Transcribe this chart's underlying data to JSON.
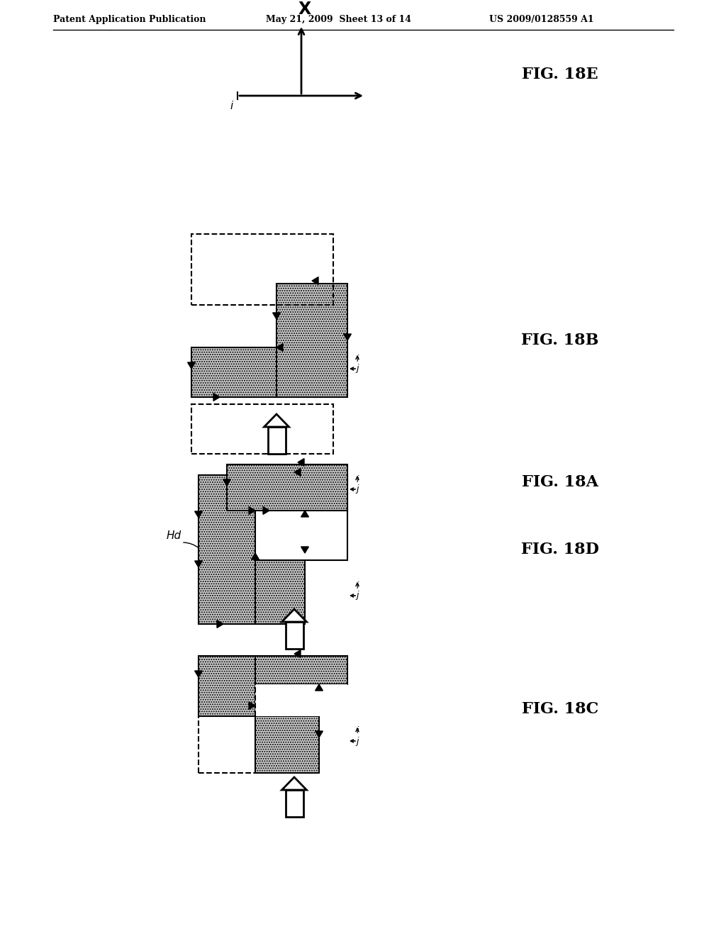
{
  "header_left": "Patent Application Publication",
  "header_mid": "May 21, 2009  Sheet 13 of 14",
  "header_right": "US 2009/0128559 A1",
  "fig_labels": [
    "FIG. 18A",
    "FIG. 18B",
    "FIG. 18C",
    "FIG. 18D",
    "FIG. 18E"
  ],
  "background_color": "#ffffff",
  "hatch_fc": "#cccccc",
  "hatch_pattern": ".....",
  "line_color": "#000000"
}
